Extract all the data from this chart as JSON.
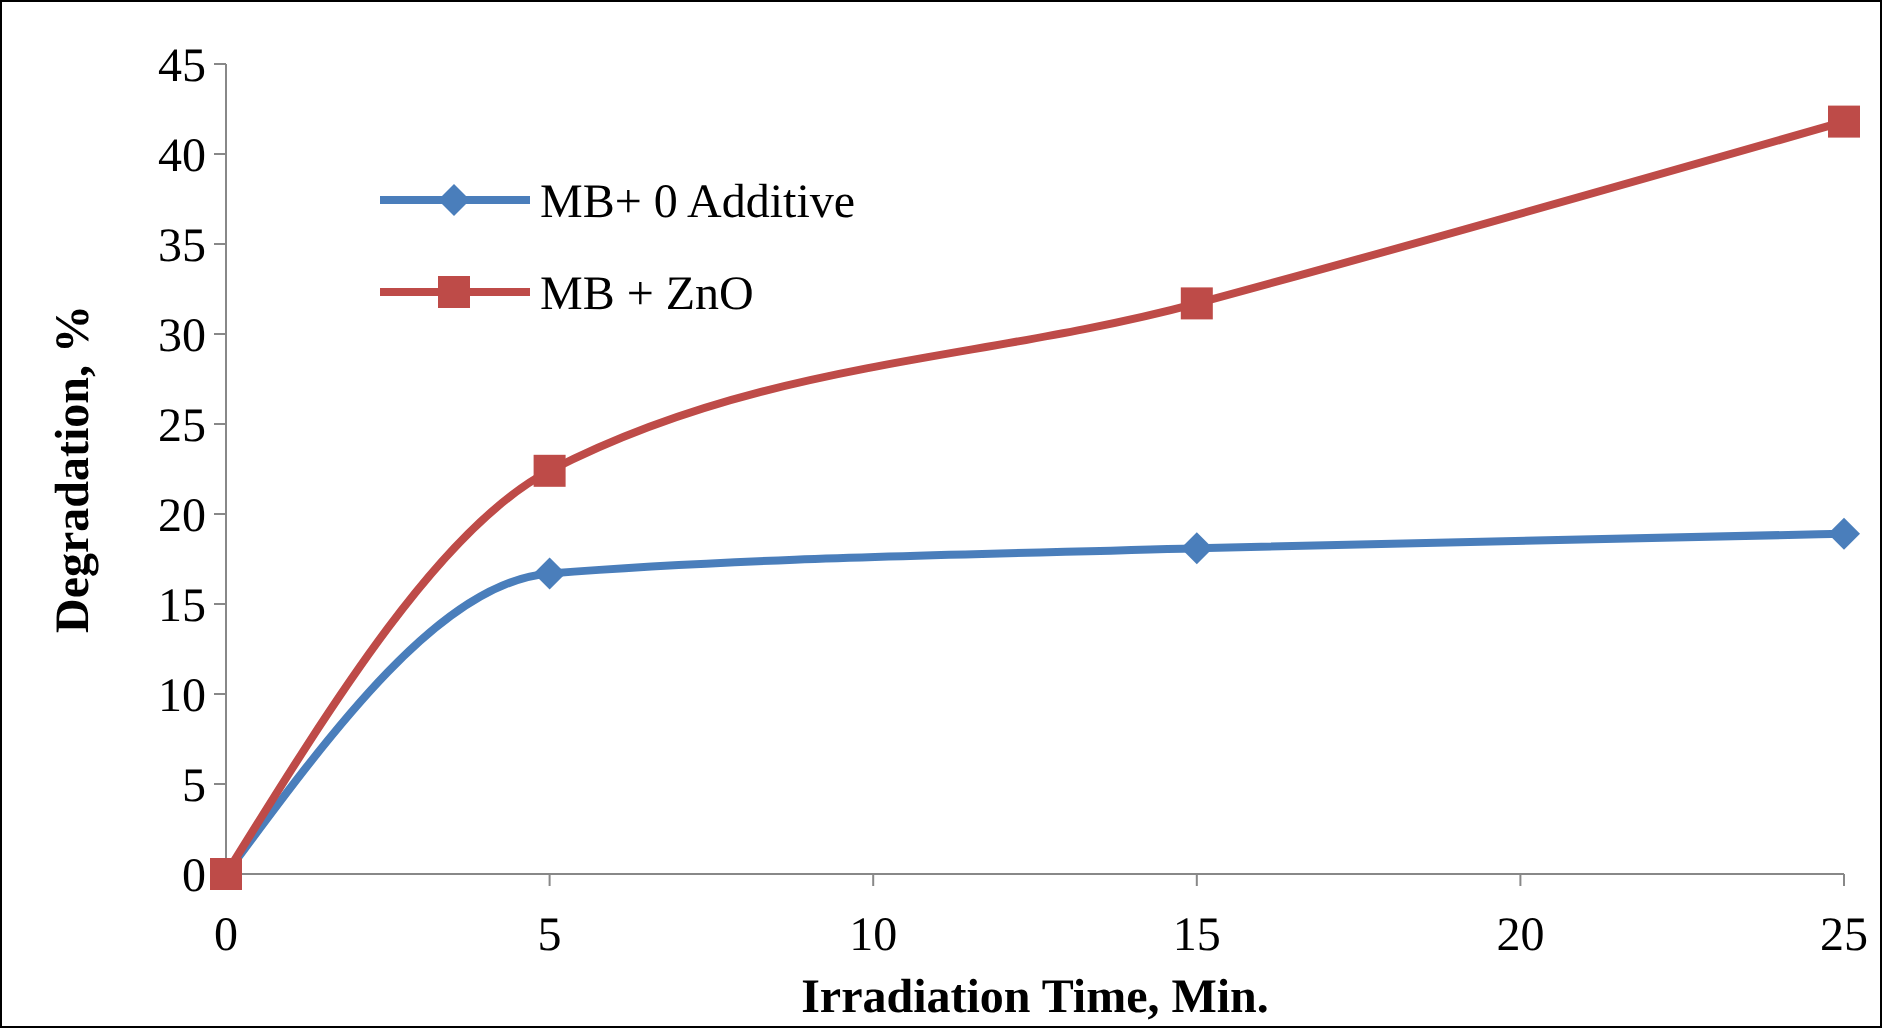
{
  "chart_data": {
    "type": "line",
    "xlabel": "Irradiation Time, Min.",
    "ylabel": "Degradation, %",
    "x": [
      0,
      5,
      15,
      25
    ],
    "series": [
      {
        "name": "MB+ 0 Additive",
        "color": "#4a7ebb",
        "values": [
          0,
          16.7,
          18.1,
          18.9
        ],
        "marker": "diamond"
      },
      {
        "name": "MB + ZnO",
        "color": "#be4b48",
        "values": [
          0,
          22.4,
          31.7,
          41.8
        ],
        "marker": "square"
      }
    ],
    "xlim": [
      0,
      25
    ],
    "xticks": [
      0,
      5,
      10,
      15,
      20,
      25
    ],
    "ylim": [
      0,
      45
    ],
    "yticks": [
      0,
      5,
      10,
      15,
      20,
      25,
      30,
      35,
      40,
      45
    ],
    "grid": false,
    "legend": "top left",
    "line_style": "solid"
  }
}
